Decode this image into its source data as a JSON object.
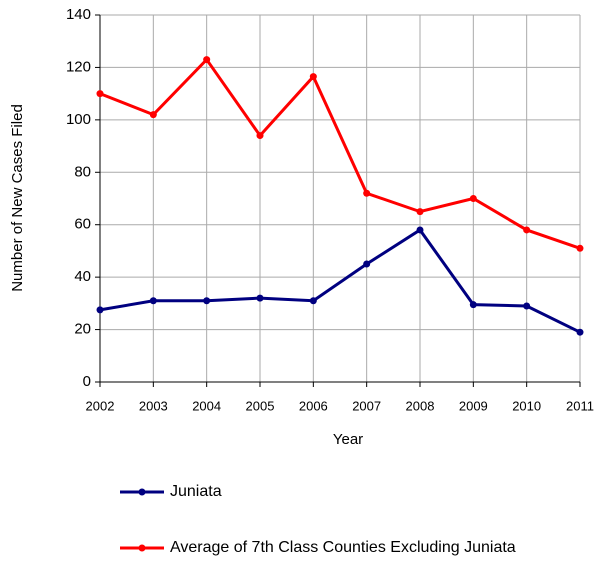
{
  "chart_data": {
    "type": "line",
    "x_label": "Year",
    "y_label": "Number of New Cases Filed",
    "x": [
      2002,
      2003,
      2004,
      2005,
      2006,
      2007,
      2008,
      2009,
      2010,
      2011
    ],
    "xlim": [
      2002,
      2011
    ],
    "xticks": [
      2002,
      2003,
      2004,
      2005,
      2006,
      2007,
      2008,
      2009,
      2010,
      2011
    ],
    "ylim": [
      0,
      140
    ],
    "yticks": [
      0,
      20,
      40,
      60,
      80,
      100,
      120,
      140
    ],
    "grid": true,
    "legend": "bottom",
    "series": [
      {
        "name": "Juniata",
        "color": "#000080",
        "values": [
          27.5,
          31,
          31,
          32,
          31,
          45,
          58,
          29.5,
          29,
          19
        ]
      },
      {
        "name": "Average of 7th Class Counties Excluding Juniata",
        "color": "#ff0000",
        "values": [
          110,
          102,
          123,
          94,
          116.5,
          72,
          65,
          70,
          58,
          51
        ]
      }
    ]
  }
}
